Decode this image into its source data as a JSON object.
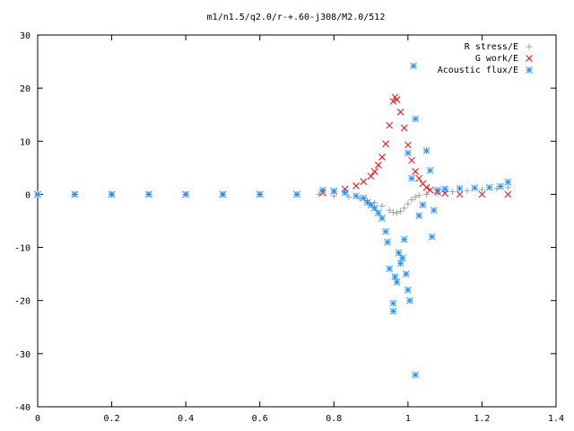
{
  "chart_data": {
    "type": "scatter",
    "title": "m1/n1.5/q2.0/r-+.60-j308/M2.0/512",
    "xlabel": "",
    "ylabel": "",
    "xlim": [
      0,
      1.4
    ],
    "ylim": [
      -40,
      30
    ],
    "x_ticks": [
      "0",
      "0.2",
      "0.4",
      "0.6",
      "0.8",
      "1",
      "1.2",
      "1.4"
    ],
    "y_ticks": [
      "30",
      "20",
      "10",
      "0",
      "-10",
      "-20",
      "-30",
      "-40"
    ],
    "grid": false,
    "legend_position": "top-right",
    "series": [
      {
        "name": "R stress/E",
        "marker": "+",
        "color": "#a0a0a0",
        "points": [
          [
            0.0,
            0
          ],
          [
            0.1,
            0
          ],
          [
            0.2,
            0
          ],
          [
            0.3,
            0
          ],
          [
            0.4,
            0
          ],
          [
            0.5,
            0
          ],
          [
            0.6,
            0
          ],
          [
            0.7,
            0
          ],
          [
            0.76,
            0.0
          ],
          [
            0.8,
            -0.3
          ],
          [
            0.84,
            -0.5
          ],
          [
            0.87,
            -0.8
          ],
          [
            0.89,
            -1.2
          ],
          [
            0.91,
            -1.6
          ],
          [
            0.93,
            -2.2
          ],
          [
            0.95,
            -3.0
          ],
          [
            0.96,
            -3.4
          ],
          [
            0.97,
            -3.5
          ],
          [
            0.98,
            -3.2
          ],
          [
            0.99,
            -2.6
          ],
          [
            1.0,
            -1.8
          ],
          [
            1.01,
            -1.0
          ],
          [
            1.02,
            -0.5
          ],
          [
            1.03,
            -0.2
          ],
          [
            1.05,
            0.0
          ],
          [
            1.08,
            0.2
          ],
          [
            1.12,
            0.5
          ],
          [
            1.16,
            0.7
          ],
          [
            1.2,
            0.9
          ],
          [
            1.24,
            1.1
          ],
          [
            1.27,
            1.3
          ]
        ]
      },
      {
        "name": "G work/E",
        "marker": "x",
        "color": "#ff0000",
        "points": [
          [
            0.0,
            0
          ],
          [
            0.1,
            0
          ],
          [
            0.2,
            0
          ],
          [
            0.3,
            0
          ],
          [
            0.4,
            0
          ],
          [
            0.5,
            0
          ],
          [
            0.6,
            0
          ],
          [
            0.7,
            0
          ],
          [
            0.77,
            0.3
          ],
          [
            0.8,
            0.6
          ],
          [
            0.83,
            1.0
          ],
          [
            0.86,
            1.6
          ],
          [
            0.88,
            2.4
          ],
          [
            0.9,
            3.4
          ],
          [
            0.91,
            4.3
          ],
          [
            0.92,
            5.5
          ],
          [
            0.93,
            7.0
          ],
          [
            0.94,
            9.5
          ],
          [
            0.95,
            13.0
          ],
          [
            0.96,
            17.5
          ],
          [
            0.965,
            18.3
          ],
          [
            0.97,
            17.8
          ],
          [
            0.98,
            15.5
          ],
          [
            0.99,
            12.5
          ],
          [
            1.0,
            9.3
          ],
          [
            1.01,
            6.4
          ],
          [
            1.02,
            4.3
          ],
          [
            1.03,
            3.0
          ],
          [
            1.04,
            2.0
          ],
          [
            1.05,
            1.3
          ],
          [
            1.06,
            0.8
          ],
          [
            1.08,
            0.4
          ],
          [
            1.1,
            0.2
          ],
          [
            1.14,
            0.0
          ],
          [
            1.2,
            0.0
          ],
          [
            1.27,
            0.0
          ]
        ]
      },
      {
        "name": "Acoustic flux/E",
        "marker": "*",
        "color": "#1e90ff",
        "points": [
          [
            0.0,
            0
          ],
          [
            0.1,
            0
          ],
          [
            0.2,
            0
          ],
          [
            0.3,
            0
          ],
          [
            0.4,
            0
          ],
          [
            0.5,
            0
          ],
          [
            0.6,
            0
          ],
          [
            0.7,
            0
          ],
          [
            0.77,
            0.8
          ],
          [
            0.8,
            0.6
          ],
          [
            0.83,
            0.3
          ],
          [
            0.86,
            -0.3
          ],
          [
            0.88,
            -0.7
          ],
          [
            0.89,
            -1.5
          ],
          [
            0.9,
            -2.0
          ],
          [
            0.91,
            -2.6
          ],
          [
            0.92,
            -3.5
          ],
          [
            0.93,
            -4.5
          ],
          [
            0.94,
            -7.0
          ],
          [
            0.945,
            -9.0
          ],
          [
            0.95,
            -14.0
          ],
          [
            0.96,
            -20.5
          ],
          [
            0.96,
            -22.0
          ],
          [
            0.965,
            -15.5
          ],
          [
            0.97,
            -16.5
          ],
          [
            0.975,
            -11.0
          ],
          [
            0.98,
            -13.0
          ],
          [
            0.985,
            -12.0
          ],
          [
            0.99,
            -8.5
          ],
          [
            0.995,
            -15.0
          ],
          [
            1.0,
            -18.0
          ],
          [
            1.0,
            7.8
          ],
          [
            1.005,
            -20.0
          ],
          [
            1.01,
            3.0
          ],
          [
            1.015,
            24.2
          ],
          [
            1.02,
            14.2
          ],
          [
            1.02,
            -34.0
          ],
          [
            1.03,
            -4.0
          ],
          [
            1.04,
            -2.0
          ],
          [
            1.05,
            8.2
          ],
          [
            1.06,
            4.5
          ],
          [
            1.065,
            -8.0
          ],
          [
            1.07,
            -3.0
          ],
          [
            1.08,
            0.8
          ],
          [
            1.1,
            1.0
          ],
          [
            1.14,
            1.1
          ],
          [
            1.18,
            1.2
          ],
          [
            1.22,
            1.3
          ],
          [
            1.25,
            1.5
          ],
          [
            1.27,
            2.3
          ]
        ]
      }
    ]
  }
}
